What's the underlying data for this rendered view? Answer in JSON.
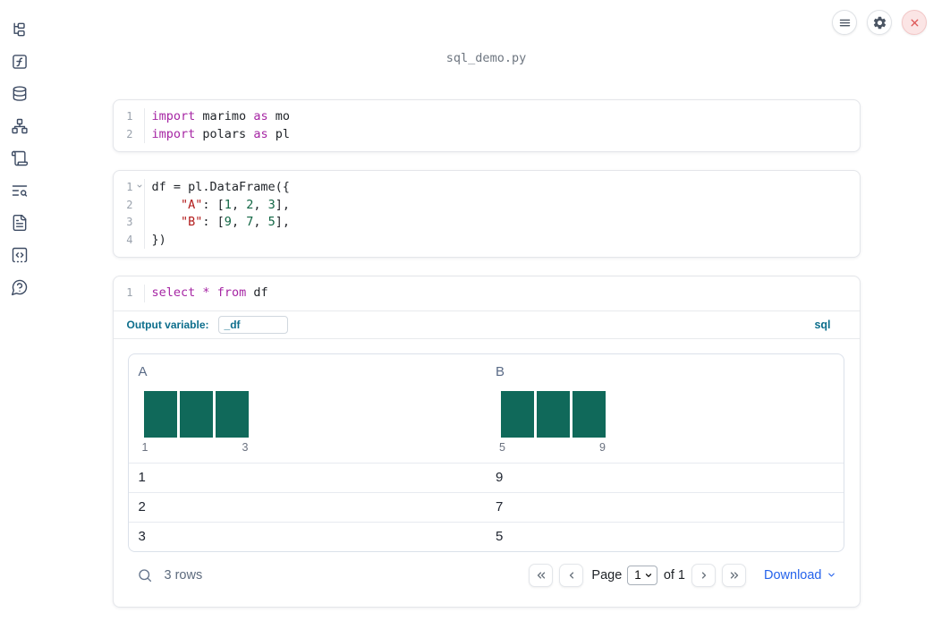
{
  "window": {
    "title": "sql_demo.py"
  },
  "colors": {
    "accent": "#0d6e8c",
    "link": "#2563eb",
    "histogram_bar": "#10695a",
    "close_red": "#dd5757",
    "icon_slate": "#3d4b63"
  },
  "syntax_colors": {
    "kw": "#a626a4",
    "str": "#b21b1b",
    "num": "#116644",
    "plain": "#1f2328"
  },
  "sidebar": {
    "icons": [
      "file-tree-icon",
      "function-square-icon",
      "database-icon",
      "dependency-graph-icon",
      "scroll-icon",
      "text-search-icon",
      "file-text-icon",
      "snippets-code-icon",
      "help-circle-icon"
    ]
  },
  "topbar": {
    "icons": [
      "menu-icon",
      "gear-icon",
      "close-icon"
    ]
  },
  "cells": [
    {
      "lines": [
        {
          "n": "1",
          "tokens": [
            {
              "t": "import",
              "c": "kw"
            },
            {
              "t": " marimo ",
              "c": "plain"
            },
            {
              "t": "as",
              "c": "kw"
            },
            {
              "t": " mo",
              "c": "plain"
            }
          ]
        },
        {
          "n": "2",
          "tokens": [
            {
              "t": "import",
              "c": "kw"
            },
            {
              "t": " polars ",
              "c": "plain"
            },
            {
              "t": "as",
              "c": "kw"
            },
            {
              "t": " pl",
              "c": "plain"
            }
          ]
        }
      ]
    },
    {
      "lines": [
        {
          "n": "1",
          "fold": true,
          "tokens": [
            {
              "t": "df = pl.DataFrame({",
              "c": "plain"
            }
          ]
        },
        {
          "n": "2",
          "tokens": [
            {
              "t": "    ",
              "c": "plain"
            },
            {
              "t": "\"A\"",
              "c": "str"
            },
            {
              "t": ": [",
              "c": "plain"
            },
            {
              "t": "1",
              "c": "num"
            },
            {
              "t": ", ",
              "c": "plain"
            },
            {
              "t": "2",
              "c": "num"
            },
            {
              "t": ", ",
              "c": "plain"
            },
            {
              "t": "3",
              "c": "num"
            },
            {
              "t": "],",
              "c": "plain"
            }
          ]
        },
        {
          "n": "3",
          "tokens": [
            {
              "t": "    ",
              "c": "plain"
            },
            {
              "t": "\"B\"",
              "c": "str"
            },
            {
              "t": ": [",
              "c": "plain"
            },
            {
              "t": "9",
              "c": "num"
            },
            {
              "t": ", ",
              "c": "plain"
            },
            {
              "t": "7",
              "c": "num"
            },
            {
              "t": ", ",
              "c": "plain"
            },
            {
              "t": "5",
              "c": "num"
            },
            {
              "t": "],",
              "c": "plain"
            }
          ]
        },
        {
          "n": "4",
          "tokens": [
            {
              "t": "})",
              "c": "plain"
            }
          ]
        }
      ]
    },
    {
      "lines": [
        {
          "n": "1",
          "tokens": [
            {
              "t": "select",
              "c": "kw"
            },
            {
              "t": " ",
              "c": "plain"
            },
            {
              "t": "*",
              "c": "kw"
            },
            {
              "t": " ",
              "c": "plain"
            },
            {
              "t": "from",
              "c": "kw"
            },
            {
              "t": " df",
              "c": "plain"
            }
          ]
        }
      ],
      "output_variable_label": "Output variable:",
      "output_variable_value": "_df",
      "language_badge": "sql"
    }
  ],
  "output_table": {
    "columns": [
      {
        "name": "A",
        "histogram": {
          "bar_heights": [
            1,
            1,
            1
          ],
          "min_label": "1",
          "max_label": "3"
        }
      },
      {
        "name": "B",
        "histogram": {
          "bar_heights": [
            1,
            1,
            1
          ],
          "min_label": "5",
          "max_label": "9"
        }
      }
    ],
    "rows": [
      [
        "1",
        "9"
      ],
      [
        "2",
        "7"
      ],
      [
        "3",
        "5"
      ]
    ],
    "footer": {
      "row_count": "3 rows",
      "page_label": "Page",
      "current_page": "1",
      "of_label": "of 1",
      "download_label": "Download"
    }
  }
}
